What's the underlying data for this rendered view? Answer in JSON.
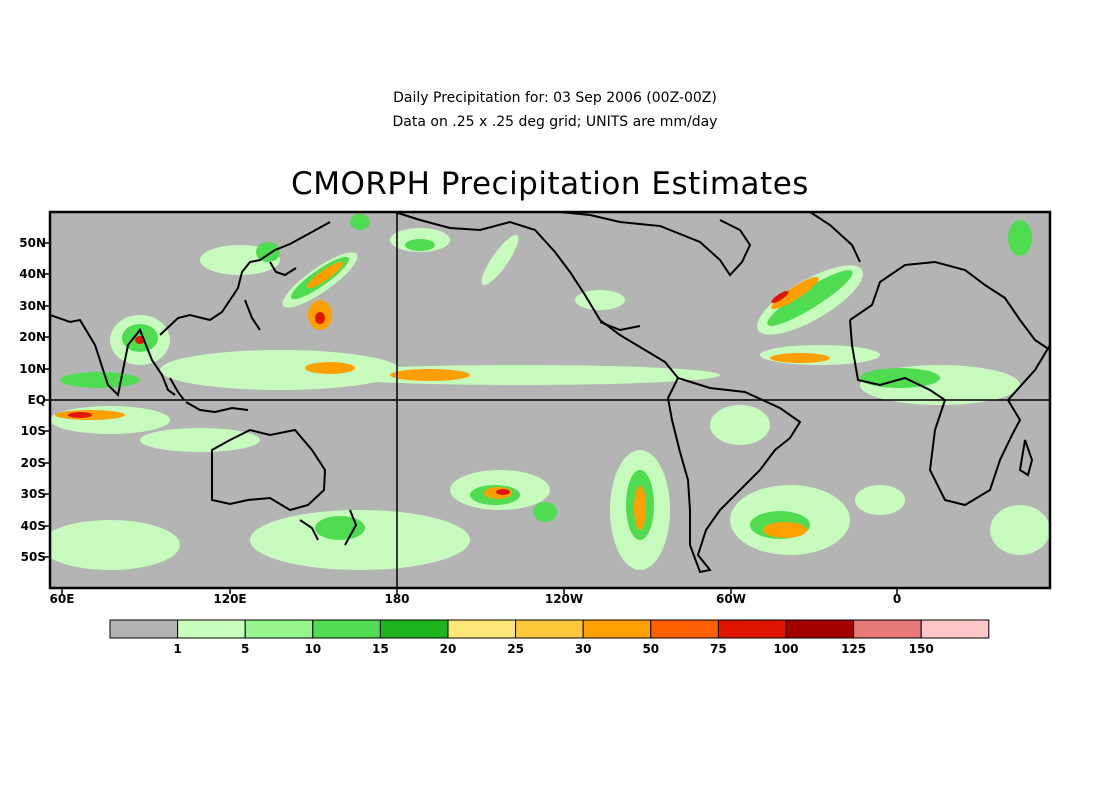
{
  "header": {
    "line1": "Daily Precipitation for: 03 Sep 2006 (00Z-00Z)",
    "line2": "Data on .25 x .25 deg grid; UNITS are mm/day"
  },
  "title": "CMORPH Precipitation Estimates",
  "axes": {
    "lat_labels": [
      "50N",
      "40N",
      "30N",
      "20N",
      "10N",
      "EQ",
      "10S",
      "20S",
      "30S",
      "40S",
      "50S"
    ],
    "lon_labels": [
      "60E",
      "120E",
      "180",
      "120W",
      "60W",
      "0"
    ]
  },
  "colorbar": {
    "thresholds": [
      "1",
      "5",
      "10",
      "15",
      "20",
      "25",
      "30",
      "50",
      "75",
      "100",
      "125",
      "150"
    ],
    "colors": [
      "#b4b4b4",
      "#c8ffbe",
      "#96f58c",
      "#50dc50",
      "#1eb41e",
      "#ffe678",
      "#ffc83c",
      "#ffa000",
      "#ff6000",
      "#e11400",
      "#a50000",
      "#e67878",
      "#ffc8c8"
    ]
  },
  "colors": {
    "ocean_land": "#b4b4b4",
    "coast": "#000000"
  }
}
